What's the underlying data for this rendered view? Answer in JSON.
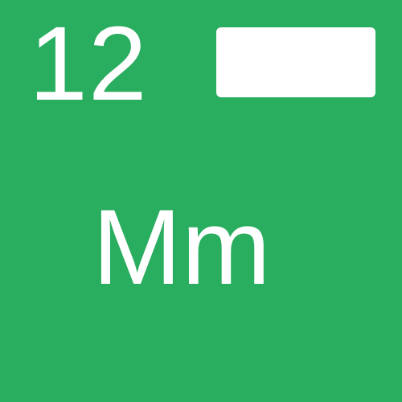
{
  "card": {
    "number": "12",
    "letters": "Mm",
    "background_color": "#29ad5f",
    "foreground_color": "#ffffff"
  }
}
